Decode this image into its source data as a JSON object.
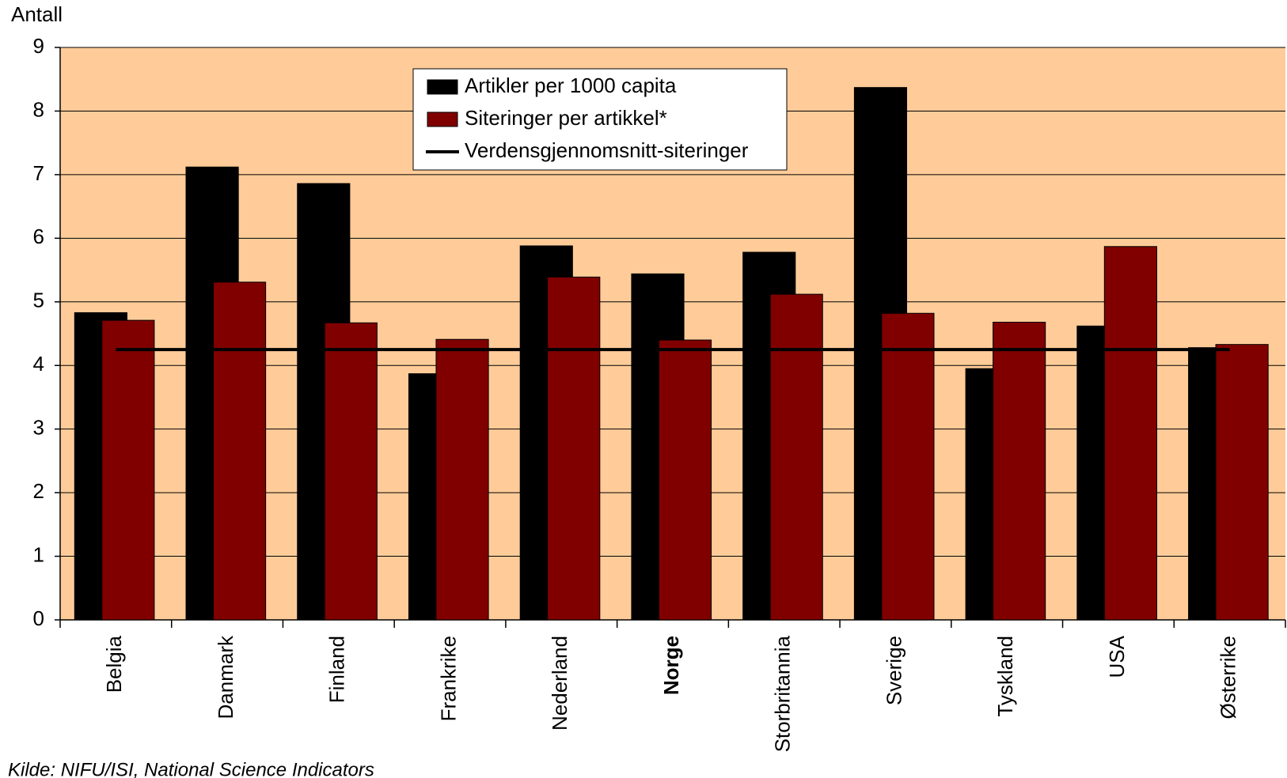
{
  "chart_data": {
    "type": "bar",
    "y_label": "Antall",
    "source": "Kilde: NIFU/ISI, National Science Indicators",
    "categories": [
      "Belgia",
      "Danmark",
      "Finland",
      "Frankrike",
      "Nederland",
      "Norge",
      "Storbritannia",
      "Sverige",
      "Tyskland",
      "USA",
      "Østerrike"
    ],
    "bold_category_index": 5,
    "series": [
      {
        "name": "Artikler per 1000 capita",
        "color": "#000000",
        "type": "bar",
        "values": [
          4.83,
          7.12,
          6.86,
          3.87,
          5.88,
          5.44,
          5.78,
          8.37,
          3.95,
          4.62,
          4.28
        ]
      },
      {
        "name": "Siteringer per artikkel*",
        "color": "#800000",
        "type": "bar",
        "values": [
          4.71,
          5.31,
          4.67,
          4.41,
          5.39,
          4.4,
          5.12,
          4.82,
          4.68,
          5.87,
          4.33
        ]
      },
      {
        "name": "Verdensgjennomsnitt-siteringer",
        "color": "#000000",
        "type": "line",
        "values": [
          4.25,
          4.25,
          4.25,
          4.25,
          4.25,
          4.25,
          4.25,
          4.25,
          4.25,
          4.25,
          4.25
        ]
      }
    ],
    "ylim": [
      0,
      9
    ],
    "yticks": [
      0,
      1,
      2,
      3,
      4,
      5,
      6,
      7,
      8,
      9
    ],
    "grid": true,
    "plot_background": "#ffcc99",
    "legend": "top"
  }
}
